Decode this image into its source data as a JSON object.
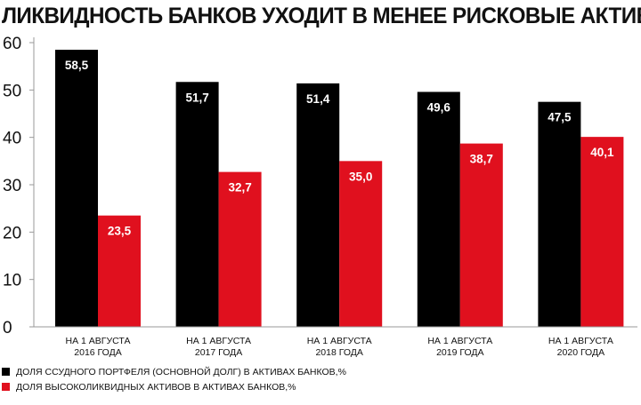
{
  "title": "ЛИКВИДНОСТЬ БАНКОВ УХОДИТ В МЕНЕЕ РИСКОВЫЕ АКТИВЫ",
  "colors": {
    "series1": "#000000",
    "series2": "#e0101e",
    "text": "#111111",
    "grid": "#999999"
  },
  "chart_data": {
    "type": "bar",
    "title": "ЛИКВИДНОСТЬ БАНКОВ УХОДИТ В МЕНЕЕ РИСКОВЫЕ АКТИВЫ",
    "categories": [
      [
        "НА 1 АВГУСТА",
        "2016 ГОДА"
      ],
      [
        "НА 1 АВГУСТА",
        "2017 ГОДА"
      ],
      [
        "НА 1 АВГУСТА",
        "2018 ГОДА"
      ],
      [
        "НА 1 АВГУСТА",
        "2019 ГОДА"
      ],
      [
        "НА 1 АВГУСТА",
        "2020 ГОДА"
      ]
    ],
    "series": [
      {
        "name": "ДОЛЯ ССУДНОГО ПОРТФЕЛЯ (ОСНОВНОЙ ДОЛГ) В АКТИВАХ БАНКОВ,%",
        "values": [
          58.5,
          51.7,
          51.4,
          49.6,
          47.5
        ],
        "labels": [
          "58,5",
          "51,7",
          "51,4",
          "49,6",
          "47,5"
        ]
      },
      {
        "name": "ДОЛЯ ВЫСОКОЛИКВИДНЫХ АКТИВОВ В АКТИВАХ БАНКОВ,%",
        "values": [
          23.5,
          32.7,
          35.0,
          38.7,
          40.1
        ],
        "labels": [
          "23,5",
          "32,7",
          "35,0",
          "38,7",
          "40,1"
        ]
      }
    ],
    "ylim": [
      0,
      60
    ],
    "yticks": [
      0,
      10,
      20,
      30,
      40,
      50,
      60
    ],
    "legend": "bottom-left",
    "grid": false
  }
}
